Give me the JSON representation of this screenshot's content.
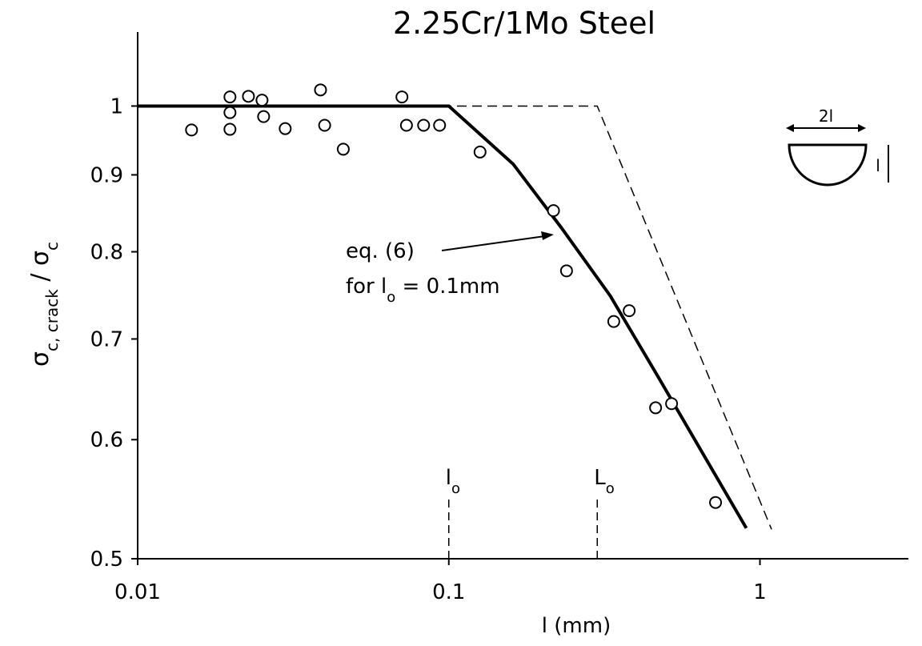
{
  "chart_data": {
    "type": "scatter",
    "title": "2.25Cr/1Mo Steel",
    "xlabel": "l (mm)",
    "ylabel": [
      "σ",
      "c, crack",
      " / σ",
      "c"
    ],
    "xscale": "log",
    "yscale": "log",
    "xlim": [
      0.01,
      3
    ],
    "ylim": [
      0.5,
      1.12
    ],
    "xticks": [
      0.01,
      0.1,
      1
    ],
    "yticks": [
      0.5,
      0.6,
      0.7,
      0.8,
      0.9,
      1
    ],
    "color": "#000000",
    "series": [
      {
        "x": [
          0.0149,
          0.0198,
          0.0198,
          0.0198,
          0.0227,
          0.0251,
          0.0254,
          0.0298,
          0.0387,
          0.0399,
          0.0458,
          0.0707,
          0.0731,
          0.083,
          0.0934,
          0.126,
          0.217,
          0.239,
          0.339,
          0.38,
          0.462,
          0.52,
          0.72
        ],
        "y": [
          0.964,
          1.014,
          0.99,
          0.965,
          1.015,
          1.009,
          0.984,
          0.966,
          1.025,
          0.971,
          0.936,
          1.014,
          0.971,
          0.971,
          0.971,
          0.932,
          0.852,
          0.777,
          0.719,
          0.731,
          0.63,
          0.634,
          0.545
        ]
      }
    ],
    "lines": [
      {
        "style": "solid",
        "x": [
          0.01,
          0.1,
          0.161,
          0.23,
          0.33,
          0.47,
          0.904
        ],
        "y": [
          1,
          1,
          0.915,
          0.83,
          0.748,
          0.661,
          0.524
        ]
      },
      {
        "style": "dashed",
        "x": [
          0.01,
          0.3,
          1.09
        ],
        "y": [
          1,
          1,
          0.523
        ]
      }
    ],
    "markers": [
      {
        "x": 0.1,
        "label": [
          "l",
          "o"
        ]
      },
      {
        "x": 0.3,
        "label": [
          "L",
          "o"
        ]
      }
    ],
    "annotation": {
      "line1": "eq. (6)",
      "line2": [
        "for l",
        "o",
        " = 0.1mm"
      ]
    },
    "inset": {
      "width_label": "2l",
      "depth_label": "l"
    }
  }
}
